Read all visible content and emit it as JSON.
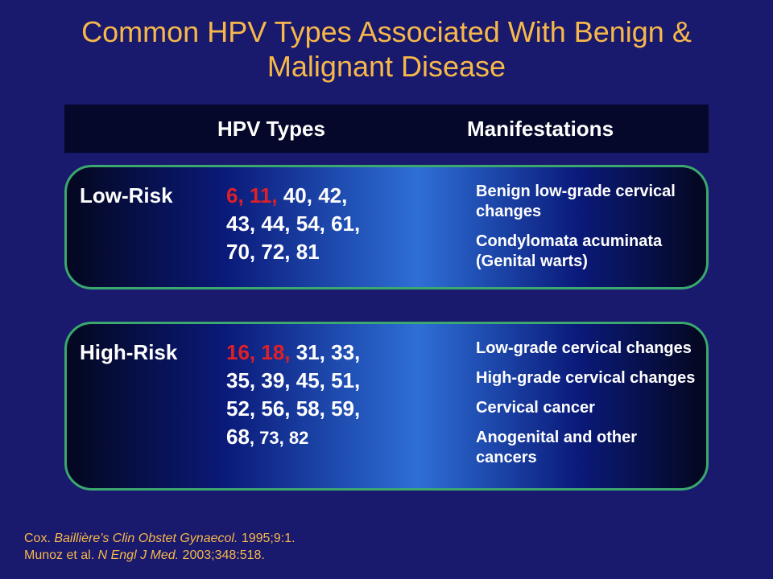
{
  "title": "Common HPV Types Associated With Benign & Malignant Disease",
  "headers": {
    "types": "HPV Types",
    "manifest": "Manifestations"
  },
  "low": {
    "label": "Low-Risk",
    "emph": "6, 11,",
    "rest1": " 40, 42,",
    "rest2": "43, 44, 54, 61,",
    "rest3": "70, 72, 81",
    "m1": "Benign low-grade cervical changes",
    "m2": "Condylomata acuminata (Genital warts)"
  },
  "high": {
    "label": "High-Risk",
    "emph": "16, 18,",
    "rest1": " 31, 33,",
    "rest2": "35, 39, 45, 51,",
    "rest3": "52, 56, 58, 59,",
    "rest4a": "68",
    "rest4b": ", 73, 82",
    "m1": "Low-grade cervical changes",
    "m2": "High-grade cervical changes",
    "m3": "Cervical cancer",
    "m4": "Anogenital and other cancers"
  },
  "cite": {
    "l1a": "Cox. ",
    "l1i": "Baillière's Clin Obstet Gynaecol.",
    "l1b": " 1995;9:1.",
    "l2a": "Munoz et al. ",
    "l2i": "N Engl J Med.",
    "l2b": " 2003;348:518."
  },
  "colors": {
    "background": "#19196e",
    "title": "#f7b84a",
    "border": "#3aa86f",
    "emphasis": "#e02026",
    "text": "#ffffff"
  }
}
